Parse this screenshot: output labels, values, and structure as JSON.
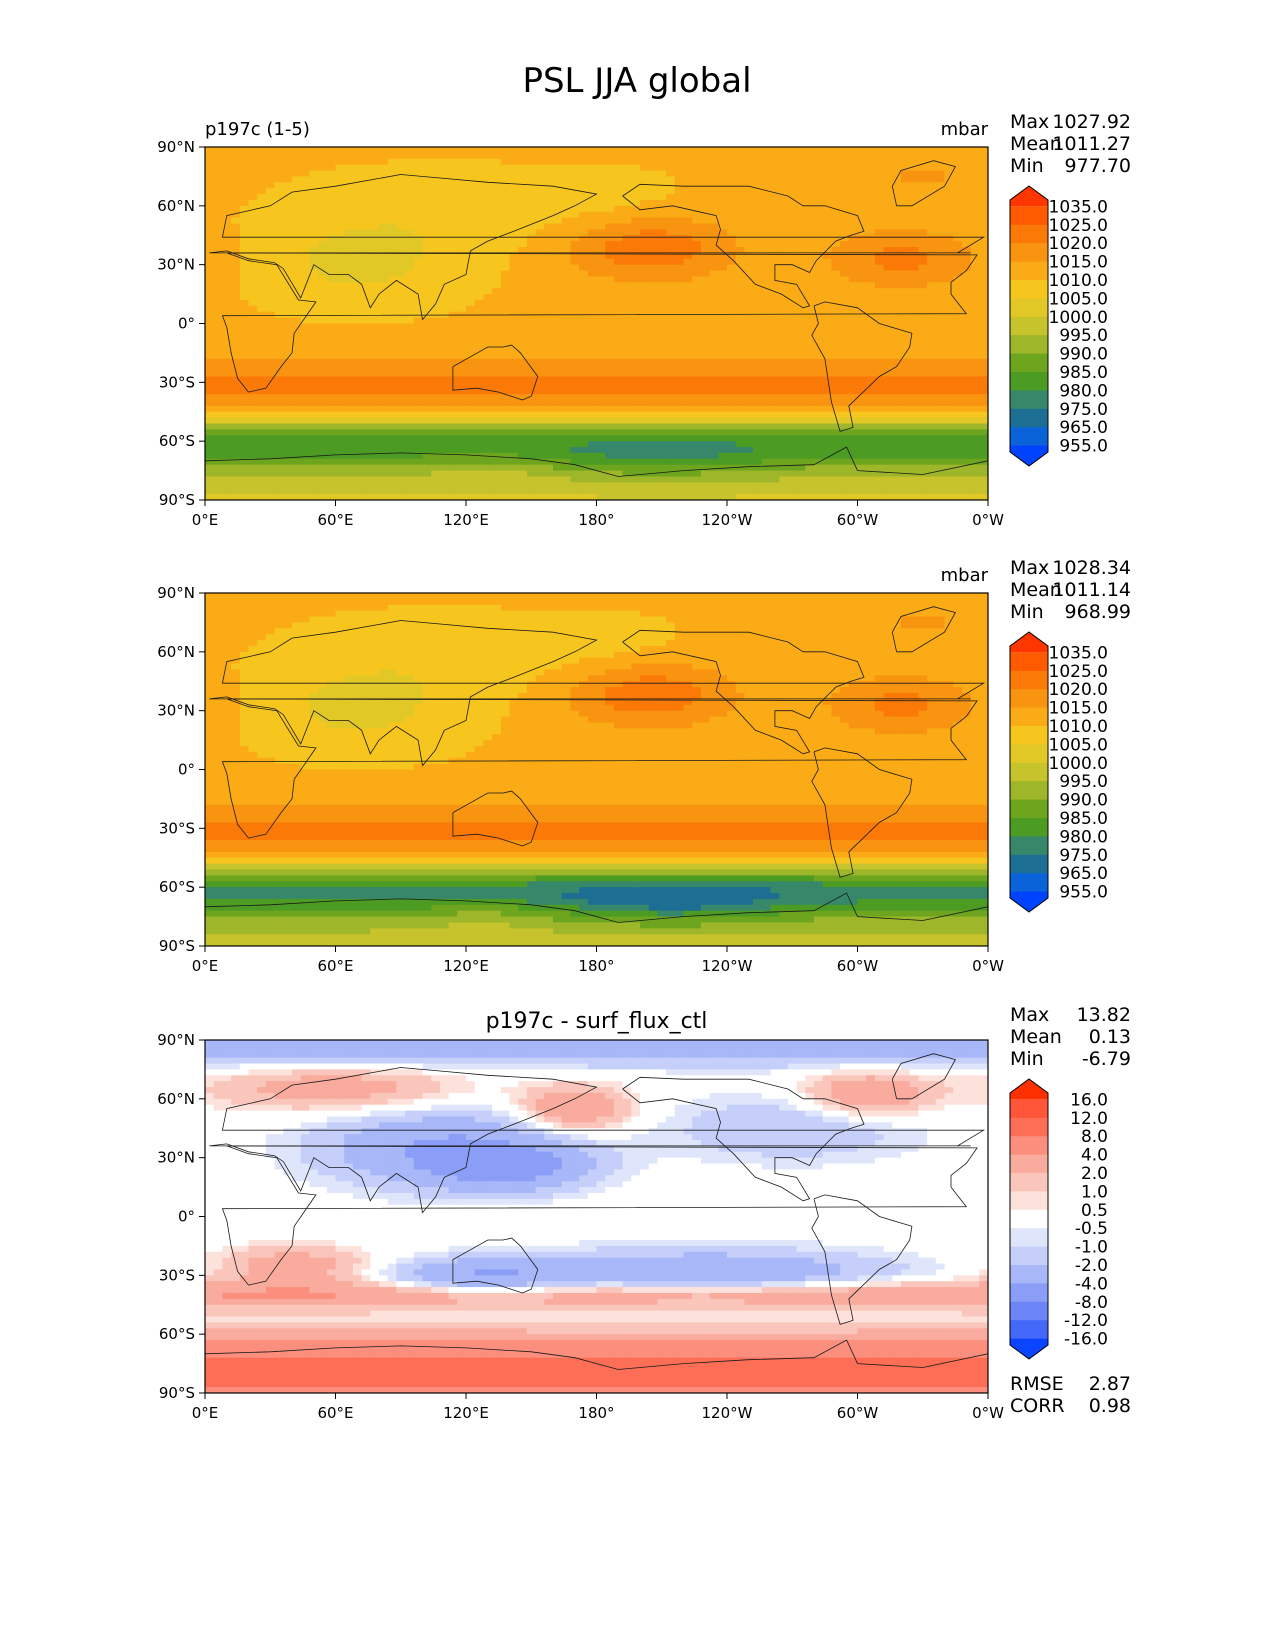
{
  "figure_title": "PSL JJA global",
  "chart_data": [
    {
      "type": "heatmap",
      "title": "",
      "left_label": "p197c (1-5)",
      "units": "mbar",
      "stats": [
        {
          "label": "Max",
          "value": "1027.92"
        },
        {
          "label": "Mean",
          "value": "1011.27"
        },
        {
          "label": "Min",
          "value": "977.70"
        }
      ],
      "x_ticks": [
        "0°E",
        "60°E",
        "120°E",
        "180°",
        "120°W",
        "60°W",
        "0°W"
      ],
      "y_ticks": [
        "90°N",
        "60°N",
        "30°N",
        "0°",
        "30°S",
        "60°S",
        "90°S"
      ],
      "xlim": [
        0,
        360
      ],
      "ylim": [
        -90,
        90
      ],
      "colorbar": {
        "levels": [
          "1035.0",
          "1025.0",
          "1020.0",
          "1015.0",
          "1010.0",
          "1005.0",
          "1000.0",
          "995.0",
          "990.0",
          "985.0",
          "980.0",
          "975.0",
          "965.0",
          "955.0"
        ],
        "colors": [
          "#ff3600",
          "#ff5a00",
          "#fb7a07",
          "#f99410",
          "#faab15",
          "#f6c61f",
          "#e2c826",
          "#c7c32c",
          "#9eb629",
          "#6ea51e",
          "#4c9b23",
          "#37886a",
          "#1c6f93",
          "#0a63d8",
          "#0043ff"
        ],
        "extend": "both"
      },
      "bottom_stats": []
    },
    {
      "type": "heatmap",
      "title": "",
      "left_label": "",
      "units": "mbar",
      "stats": [
        {
          "label": "Max",
          "value": "1028.34"
        },
        {
          "label": "Mean",
          "value": "1011.14"
        },
        {
          "label": "Min",
          "value": "968.99"
        }
      ],
      "x_ticks": [
        "0°E",
        "60°E",
        "120°E",
        "180°",
        "120°W",
        "60°W",
        "0°W"
      ],
      "y_ticks": [
        "90°N",
        "60°N",
        "30°N",
        "0°",
        "30°S",
        "60°S",
        "90°S"
      ],
      "xlim": [
        0,
        360
      ],
      "ylim": [
        -90,
        90
      ],
      "colorbar": {
        "levels": [
          "1035.0",
          "1025.0",
          "1020.0",
          "1015.0",
          "1010.0",
          "1005.0",
          "1000.0",
          "995.0",
          "990.0",
          "985.0",
          "980.0",
          "975.0",
          "965.0",
          "955.0"
        ],
        "colors": [
          "#ff3600",
          "#ff5a00",
          "#fb7a07",
          "#f99410",
          "#faab15",
          "#f6c61f",
          "#e2c826",
          "#c7c32c",
          "#9eb629",
          "#6ea51e",
          "#4c9b23",
          "#37886a",
          "#1c6f93",
          "#0a63d8",
          "#0043ff"
        ],
        "extend": "both"
      },
      "bottom_stats": []
    },
    {
      "type": "heatmap",
      "title": "p197c - surf_flux_ctl",
      "left_label": "",
      "units": "",
      "stats": [
        {
          "label": "Max",
          "value": "13.82"
        },
        {
          "label": "Mean",
          "value": "0.13"
        },
        {
          "label": "Min",
          "value": "-6.79"
        }
      ],
      "x_ticks": [
        "0°E",
        "60°E",
        "120°E",
        "180°",
        "120°W",
        "60°W",
        "0°W"
      ],
      "y_ticks": [
        "90°N",
        "60°N",
        "30°N",
        "0°",
        "30°S",
        "60°S",
        "90°S"
      ],
      "xlim": [
        0,
        360
      ],
      "ylim": [
        -90,
        90
      ],
      "colorbar": {
        "levels": [
          "16.0",
          "12.0",
          "8.0",
          "4.0",
          "2.0",
          "1.0",
          "0.5",
          "-0.5",
          "-1.0",
          "-2.0",
          "-4.0",
          "-8.0",
          "-12.0",
          "-16.0"
        ],
        "colors": [
          "#ff3000",
          "#ff5538",
          "#fd6e56",
          "#fb8e7c",
          "#f9ab9d",
          "#fac6bc",
          "#fde2dc",
          "#ffffff",
          "#dfe6fb",
          "#c5cffa",
          "#a7b7f8",
          "#8a9ef7",
          "#6b84f6",
          "#4468f9",
          "#0b44ff"
        ],
        "extend": "both"
      },
      "bottom_stats": [
        {
          "label": "RMSE",
          "value": "2.87"
        },
        {
          "label": "CORR",
          "value": "0.98"
        }
      ]
    }
  ]
}
